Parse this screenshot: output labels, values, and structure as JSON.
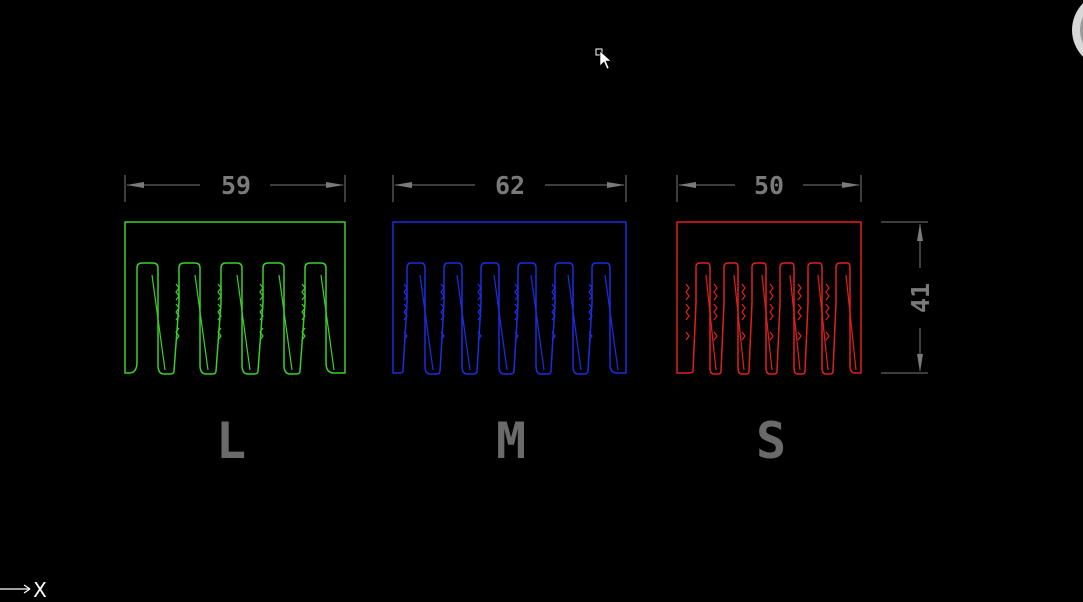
{
  "drawing": {
    "background": "#000000",
    "dimension_color": "#7a7a7a",
    "label_color": "#6a6a6a",
    "parts": [
      {
        "id": "L",
        "label": "L",
        "width_dim": "59",
        "color": "#3ccf2c",
        "slots": 5
      },
      {
        "id": "M",
        "label": "M",
        "width_dim": "62",
        "color": "#1c2ee0",
        "slots": 6
      },
      {
        "id": "S",
        "label": "S",
        "width_dim": "50",
        "color": "#e02020",
        "slots": 6
      }
    ],
    "height_dim": "41",
    "ucs_axis_label": "X"
  },
  "icons": {
    "cursor": "arrow-cursor-icon",
    "pickbox": "pickbox-icon",
    "viewcube": "viewcube-edge-icon",
    "ucs": "ucs-axis-icon"
  }
}
